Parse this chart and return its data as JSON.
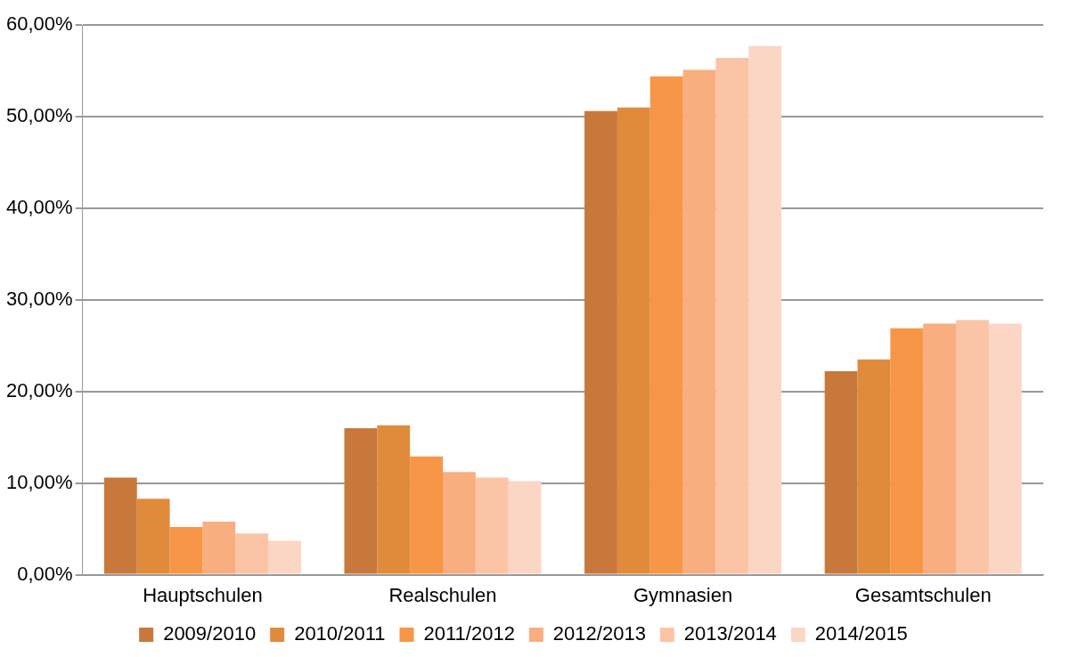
{
  "chart_data": {
    "type": "bar",
    "categories": [
      "Hauptschulen",
      "Realschulen",
      "Gymnasien",
      "Gesamtschulen"
    ],
    "series": [
      {
        "name": "2009/2010",
        "color": "#c8783a",
        "values": [
          10.6,
          16.0,
          50.6,
          22.2
        ]
      },
      {
        "name": "2010/2011",
        "color": "#e08b3c",
        "values": [
          8.3,
          16.3,
          51.0,
          23.5
        ]
      },
      {
        "name": "2011/2012",
        "color": "#f79646",
        "values": [
          5.2,
          12.9,
          54.4,
          26.9
        ]
      },
      {
        "name": "2012/2013",
        "color": "#f9ae80",
        "values": [
          5.8,
          11.2,
          55.1,
          27.4
        ]
      },
      {
        "name": "2013/2014",
        "color": "#fbc4a6",
        "values": [
          4.5,
          10.6,
          56.4,
          27.8
        ]
      },
      {
        "name": "2014/2015",
        "color": "#fcd6c4",
        "values": [
          3.7,
          10.2,
          57.7,
          27.4
        ]
      }
    ],
    "ylim": [
      0,
      60
    ],
    "yticks": [
      {
        "value": 0,
        "label": "0,00%"
      },
      {
        "value": 10,
        "label": "10,00%"
      },
      {
        "value": 20,
        "label": "20,00%"
      },
      {
        "value": 30,
        "label": "30,00%"
      },
      {
        "value": 40,
        "label": "40,00%"
      },
      {
        "value": 50,
        "label": "50,00%"
      },
      {
        "value": 60,
        "label": "60,00%"
      }
    ],
    "grid": "y",
    "legend": "bottom"
  }
}
